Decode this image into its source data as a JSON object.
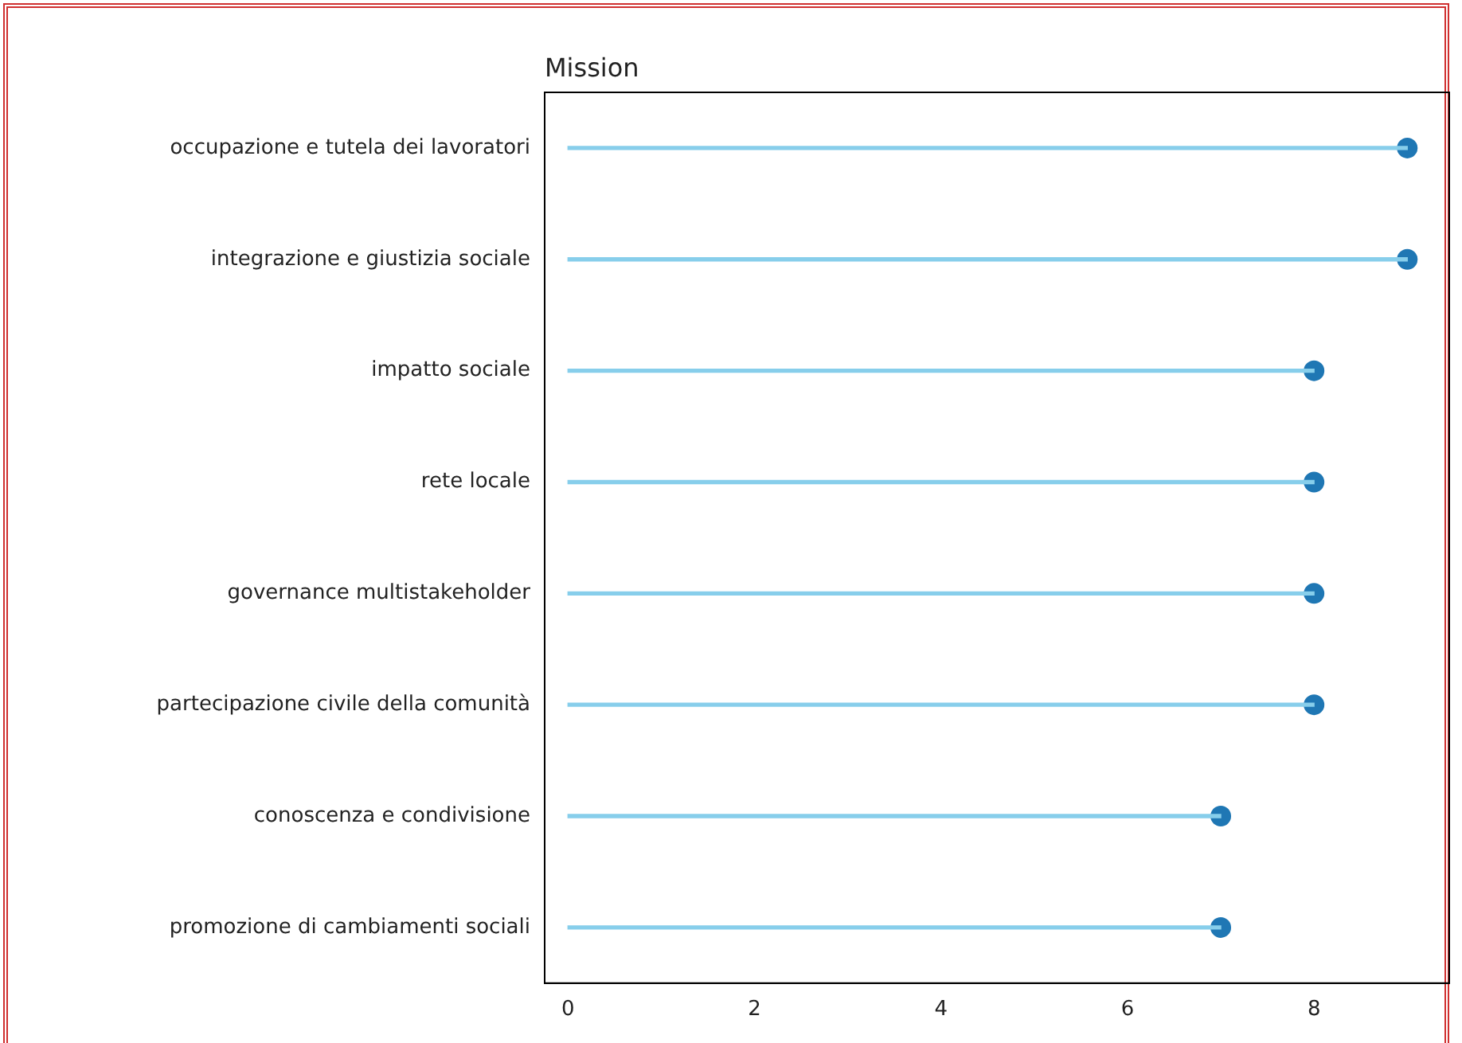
{
  "chart_data": {
    "type": "lollipop",
    "orientation": "horizontal",
    "title": "Mission",
    "categories": [
      "occupazione e tutela dei lavoratori",
      "integrazione e giustizia sociale",
      "impatto sociale",
      "rete locale",
      "governance multistakeholder",
      "partecipazione civile della comunità",
      "conoscenza e condivisione",
      "promozione di cambiamenti sociali"
    ],
    "series": [
      {
        "type": "bar",
        "color": "#87ceeb",
        "values": [
          9,
          9,
          8,
          8,
          8,
          8,
          7,
          7
        ]
      },
      {
        "type": "scatter",
        "color": "#1f77b4",
        "values": [
          9,
          9,
          8,
          8,
          8,
          8,
          7,
          7
        ]
      }
    ],
    "xlim": [
      -0.25,
      9.45
    ],
    "xticks": [
      0,
      2,
      4,
      6,
      8
    ],
    "grid": false,
    "legend": false,
    "marker": "circle"
  }
}
